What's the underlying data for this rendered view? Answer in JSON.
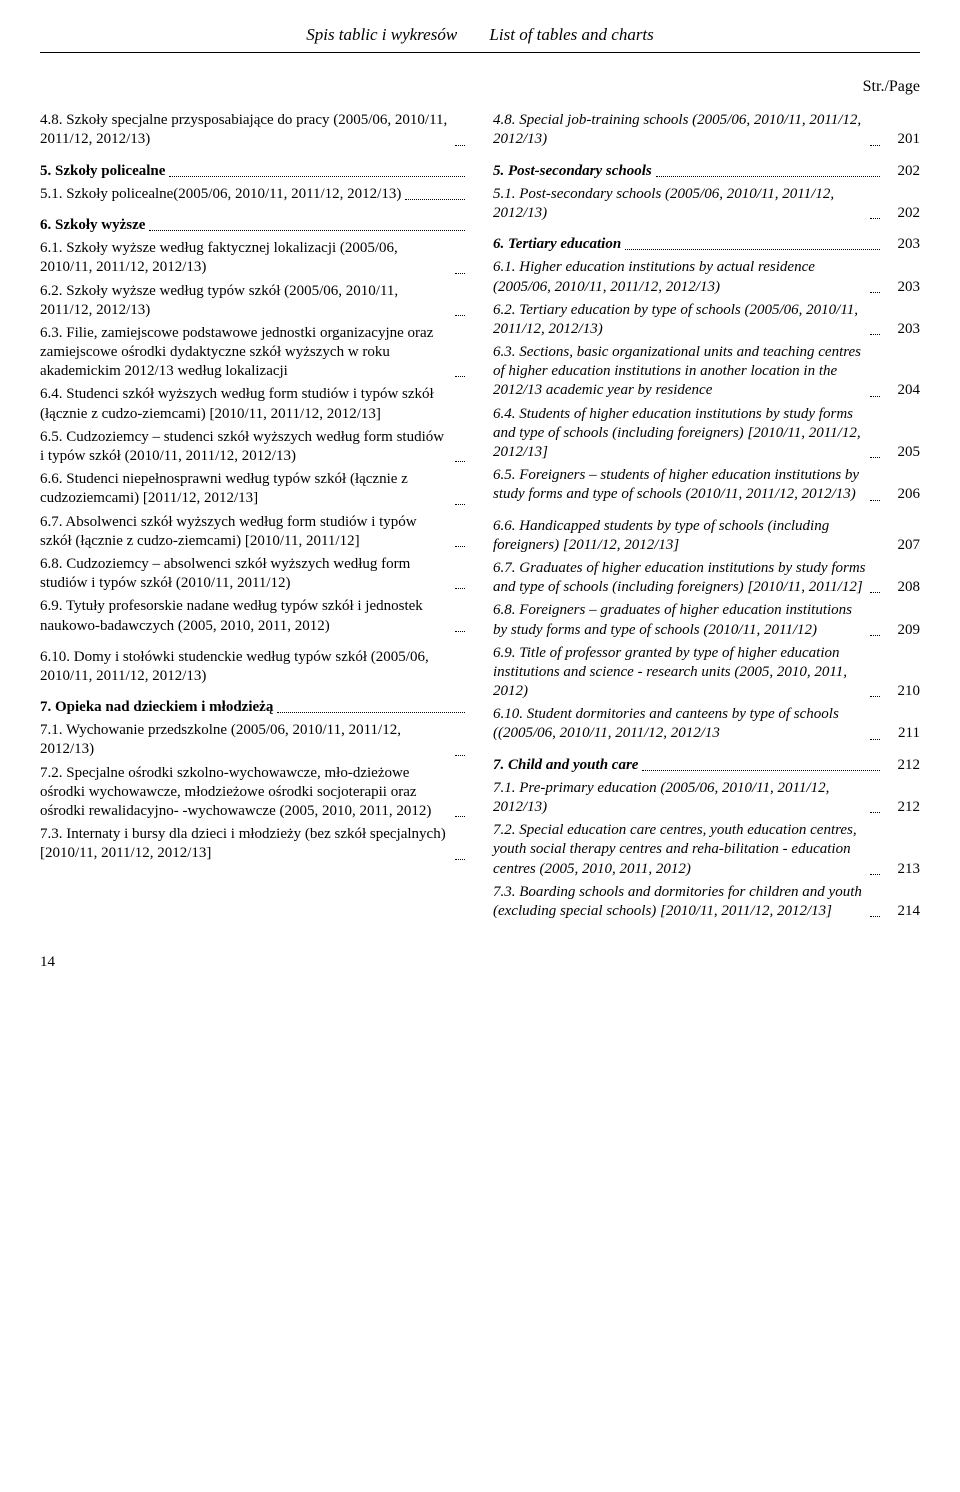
{
  "header": {
    "left": "Spis tablic i wykresów",
    "right": "List of tables and charts"
  },
  "page_ind": "Str./Page",
  "footer_page": "14",
  "left_col": [
    {
      "type": "entry",
      "text": "4.8. Szkoły specjalne przysposabiające do pracy (2005/06, 2010/11, 2011/12, 2012/13)",
      "dots": true,
      "cls": ""
    },
    {
      "type": "gap"
    },
    {
      "type": "entry",
      "text": "5. Szkoły policealne",
      "dots": true,
      "cls": "bold"
    },
    {
      "type": "entry",
      "text": "5.1. Szkoły policealne(2005/06, 2010/11, 2011/12, 2012/13)",
      "dots": true,
      "cls": ""
    },
    {
      "type": "gap"
    },
    {
      "type": "entry",
      "text": "6. Szkoły wyższe",
      "dots": true,
      "cls": "bold"
    },
    {
      "type": "entry",
      "text": "6.1. Szkoły wyższe według faktycznej lokalizacji (2005/06, 2010/11, 2011/12, 2012/13)",
      "dots": true,
      "cls": ""
    },
    {
      "type": "entry",
      "text": "6.2. Szkoły wyższe według typów szkół (2005/06, 2010/11, 2011/12, 2012/13)",
      "dots": true,
      "cls": ""
    },
    {
      "type": "entry",
      "text": "6.3. Filie, zamiejscowe podstawowe jednostki organizacyjne oraz zamiejscowe ośrodki dydaktyczne szkół wyższych w roku akademickim 2012/13 według lokalizacji",
      "dots": true,
      "cls": ""
    },
    {
      "type": "entry",
      "text": "6.4. Studenci szkół wyższych według form studiów i typów szkół (łącznie z cudzo-ziemcami) [2010/11, 2011/12, 2012/13]",
      "dots": false,
      "cls": ""
    },
    {
      "type": "entry",
      "text": "6.5. Cudzoziemcy – studenci szkół wyższych według form studiów i typów szkół (2010/11, 2011/12, 2012/13)",
      "dots": true,
      "cls": ""
    },
    {
      "type": "entry",
      "text": "6.6. Studenci niepełnosprawni według typów szkół (łącznie z cudzoziemcami) [2011/12, 2012/13]",
      "dots": true,
      "cls": ""
    },
    {
      "type": "entry",
      "text": "6.7. Absolwenci szkół wyższych według form studiów i typów szkół  (łącznie z cudzo-ziemcami) [2010/11, 2011/12]",
      "dots": true,
      "cls": ""
    },
    {
      "type": "entry",
      "text": "6.8. Cudzoziemcy – absolwenci szkół wyższych według form studiów i typów szkół (2010/11, 2011/12)",
      "dots": true,
      "cls": ""
    },
    {
      "type": "entry",
      "text": "6.9. Tytuły profesorskie nadane według typów szkół i jednostek naukowo-badawczych (2005, 2010, 2011, 2012)",
      "dots": true,
      "cls": ""
    },
    {
      "type": "gap"
    },
    {
      "type": "entry",
      "text": "6.10. Domy i stołówki studenckie według typów szkół (2005/06, 2010/11, 2011/12, 2012/13)",
      "dots": false,
      "cls": ""
    },
    {
      "type": "gap"
    },
    {
      "type": "entry",
      "text": "7. Opieka nad dzieckiem i młodzieżą",
      "dots": true,
      "cls": "bold"
    },
    {
      "type": "entry",
      "text": "7.1. Wychowanie przedszkolne (2005/06, 2010/11, 2011/12, 2012/13)",
      "dots": true,
      "cls": ""
    },
    {
      "type": "entry",
      "text": "7.2. Specjalne ośrodki szkolno-wychowawcze, mło-dzieżowe ośrodki wychowawcze, młodzieżowe ośrodki socjoterapii oraz ośrodki  rewalidacyjno- -wychowawcze (2005, 2010, 2011, 2012)",
      "dots": true,
      "cls": ""
    },
    {
      "type": "entry",
      "text": "7.3. Internaty i bursy dla dzieci i młodzieży (bez  szkół specjalnych) [2010/11, 2011/12, 2012/13]",
      "dots": true,
      "cls": ""
    }
  ],
  "right_col": [
    {
      "type": "entry",
      "text": "4.8. Special job-training schools  (2005/06, 2010/11, 2011/12, 2012/13)",
      "dots": true,
      "page": "201",
      "cls": "ital"
    },
    {
      "type": "gap"
    },
    {
      "type": "entry",
      "text": "5. Post-secondary schools",
      "dots": true,
      "page": "202",
      "cls": "bold ital"
    },
    {
      "type": "entry",
      "text": "5.1. Post-secondary schools (2005/06, 2010/11, 2011/12, 2012/13)",
      "dots": true,
      "page": "202",
      "cls": "ital"
    },
    {
      "type": "gap"
    },
    {
      "type": "entry",
      "text": "6. Tertiary education",
      "dots": true,
      "page": "203",
      "cls": "bold ital"
    },
    {
      "type": "entry",
      "text": "6.1. Higher education institutions by actual residence (2005/06, 2010/11, 2011/12, 2012/13)",
      "dots": true,
      "page": "203",
      "cls": "ital"
    },
    {
      "type": "entry",
      "text": "6.2. Tertiary education by type of schools (2005/06, 2010/11, 2011/12, 2012/13)",
      "dots": true,
      "page": "203",
      "cls": "ital"
    },
    {
      "type": "entry",
      "text": "6.3. Sections, basic organizational units and teaching centres of higher education institutions in another location in the 2012/13 academic year by residence",
      "dots": true,
      "page": "204",
      "cls": "ital"
    },
    {
      "type": "entry",
      "text": "6.4. Students of higher education institutions by study forms and type of schools (including foreigners) [2010/11, 2011/12, 2012/13]",
      "dots": true,
      "page": "205",
      "cls": "ital"
    },
    {
      "type": "entry",
      "text": "6.5. Foreigners – students of higher education institutions by study forms and type of schools (2010/11, 2011/12, 2012/13) ",
      "dots": true,
      "page": "206",
      "cls": "ital"
    },
    {
      "type": "gap"
    },
    {
      "type": "entry",
      "text": "6.6. Handicapped students by type of schools (including foreigners) [2011/12, 2012/13]",
      "dots": false,
      "page": "207",
      "cls": "ital"
    },
    {
      "type": "entry",
      "text": "6.7. Graduates of higher education institutions by study forms and type of schools (including foreigners) [2010/11, 2011/12]",
      "dots": true,
      "page": "208",
      "cls": "ital"
    },
    {
      "type": "entry",
      "text": "6.8. Foreigners – graduates of higher education institutions by study forms and type of schools (2010/11, 2011/12)",
      "dots": true,
      "page": "209",
      "cls": "ital"
    },
    {
      "type": "entry",
      "text": "6.9. Title of professor granted by type of higher education  institutions and science - research units (2005, 2010, 2011, 2012)",
      "dots": true,
      "page": "210",
      "cls": "ital"
    },
    {
      "type": "entry",
      "text": "6.10. Student dormitories and canteens by type of schools ((2005/06, 2010/11, 2011/12, 2012/13",
      "dots": true,
      "page": "211",
      "cls": "ital"
    },
    {
      "type": "gap"
    },
    {
      "type": "entry",
      "text": "7. Child and youth care",
      "dots": true,
      "page": "212",
      "cls": "bold ital"
    },
    {
      "type": "entry",
      "text": "7.1. Pre-primary education (2005/06, 2010/11, 2011/12, 2012/13)",
      "dots": true,
      "page": "212",
      "cls": "ital"
    },
    {
      "type": "entry",
      "text": "7.2. Special education care centres, youth education centres, youth social therapy centres and reha-bilitation - education centres (2005, 2010, 2011, 2012)",
      "dots": true,
      "page": "213",
      "cls": "ital"
    },
    {
      "type": "entry",
      "text": "7.3. Boarding schools and dormitories for children and youth (excluding special schools) [2010/11, 2011/12, 2012/13]",
      "dots": true,
      "page": "214",
      "cls": "ital"
    }
  ]
}
